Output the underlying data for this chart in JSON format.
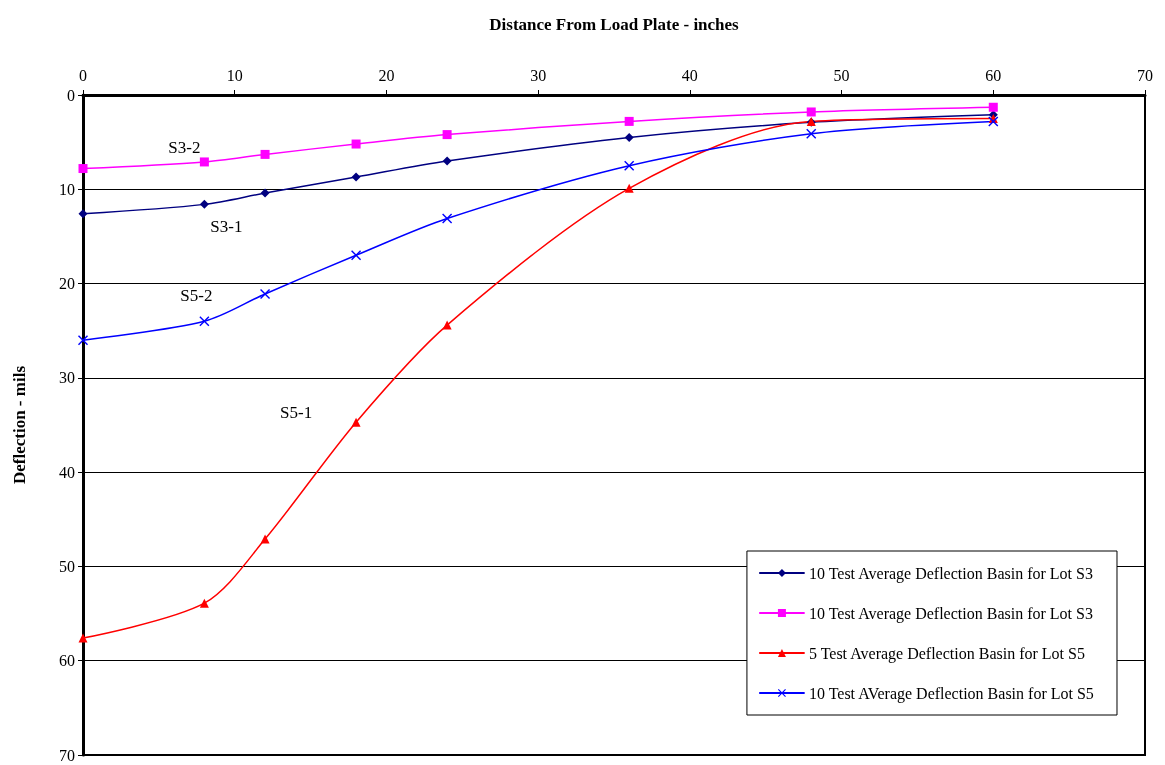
{
  "chart_data": {
    "type": "line",
    "xlabel": "Distance From Load Plate - inches",
    "ylabel": "Deflection - mils",
    "x": [
      0,
      8,
      12,
      18,
      24,
      36,
      48,
      60
    ],
    "series": [
      {
        "name": "10 Test Average Deflection Basin for Lot S3",
        "color": "#000080",
        "marker": "diamond",
        "values": [
          12.6,
          11.6,
          10.4,
          8.7,
          7.0,
          4.5,
          2.9,
          2.1
        ]
      },
      {
        "name": "10 Test Average Deflection Basin for Lot S3",
        "color": "#ff00ff",
        "marker": "square",
        "values": [
          7.8,
          7.1,
          6.3,
          5.2,
          4.2,
          2.8,
          1.8,
          1.3
        ]
      },
      {
        "name": "5 Test Average Deflection Basin for Lot S5",
        "color": "#ff0000",
        "marker": "triangle",
        "values": [
          57.6,
          53.9,
          47.1,
          34.7,
          24.4,
          9.9,
          2.8,
          2.5
        ]
      },
      {
        "name": "10 Test AVerage Deflection Basin for Lot S5",
        "color": "#0000ff",
        "marker": "cross",
        "values": [
          26.0,
          24.0,
          21.1,
          17.0,
          13.1,
          7.5,
          4.1,
          2.8
        ]
      }
    ],
    "xlim": [
      0,
      70
    ],
    "xticks": [
      0,
      10,
      20,
      30,
      40,
      50,
      60,
      70
    ],
    "ylim": [
      70,
      0
    ],
    "yticks": [
      0,
      10,
      20,
      30,
      40,
      50,
      60,
      70
    ],
    "grid": "y",
    "legend": "bottom right",
    "line_style": "solid",
    "annotations": [
      "S3-2",
      "S3-1",
      "S5-2",
      "S5-1"
    ]
  }
}
